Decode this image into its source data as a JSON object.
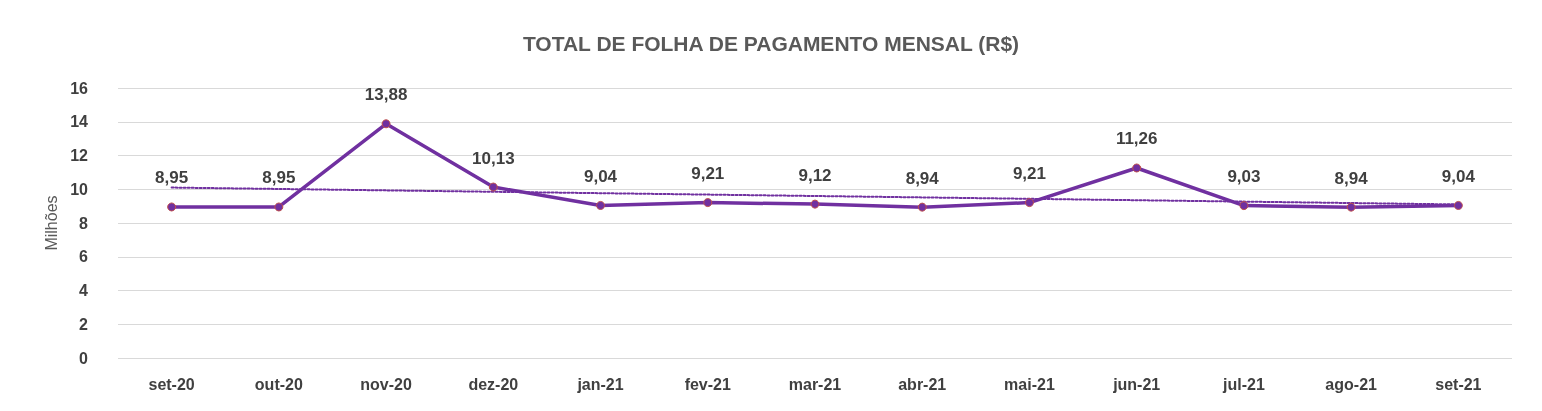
{
  "chart_data": {
    "type": "line",
    "title": "TOTAL DE FOLHA DE PAGAMENTO MENSAL (R$)",
    "ylabel": "Milhões",
    "categories": [
      "set-20",
      "out-20",
      "nov-20",
      "dez-20",
      "jan-21",
      "fev-21",
      "mar-21",
      "abr-21",
      "mai-21",
      "jun-21",
      "jul-21",
      "ago-21",
      "set-21"
    ],
    "series": [
      {
        "color": "#7030a0",
        "values": [
          8.95,
          8.95,
          13.88,
          10.13,
          9.04,
          9.21,
          9.12,
          8.94,
          9.21,
          11.26,
          9.03,
          8.94,
          9.04
        ],
        "value_labels": [
          "8,95",
          "8,95",
          "13,88",
          "10,13",
          "9,04",
          "9,21",
          "9,12",
          "8,94",
          "9,21",
          "11,26",
          "9,03",
          "8,94",
          "9,04"
        ],
        "marker": "circle",
        "line_style": "solid"
      },
      {
        "type": "line",
        "color": "#7030a0",
        "x": [
          "set-20",
          "set-21"
        ],
        "values": [
          10.1,
          9.1
        ],
        "marker": "none",
        "line_style": "dotted"
      }
    ],
    "ylim": [
      0,
      16
    ],
    "yticks": [
      0,
      2,
      4,
      6,
      8,
      10,
      12,
      14,
      16
    ],
    "grid": "y"
  }
}
